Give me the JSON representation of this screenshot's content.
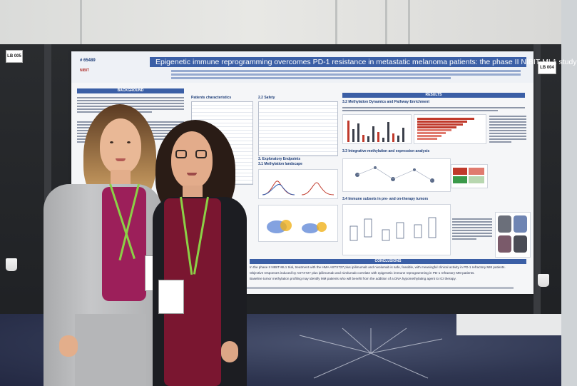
{
  "scene": {
    "board_tags": {
      "left": "LB 005",
      "right": "LB 004"
    },
    "colors": {
      "poster_blue": "#3b5fa6",
      "board": "#232528",
      "lanyard": "#8bd046",
      "blazer": "#b8b9bb",
      "cardigan": "#1c1d22",
      "top_magenta": "#9c1f5a"
    }
  },
  "poster": {
    "id": "# 65489",
    "title": "Epigenetic immune reprogramming overcomes PD-1 resistance in metastatic melanoma patients: the phase II NIBIT-ML1 study",
    "logo": "NIBIT",
    "sections": {
      "background": "BACKGROUND",
      "patients": "Patients characteristics",
      "safety": "2.2 Safety",
      "results": "RESULTS",
      "methylation_dynamics": "3.2 Methylation Dynamics and Pathway Enrichment",
      "integrative": "3.3 Integrative methylation and expression analysis",
      "exploratory": "3. Exploratory Endpoints",
      "landscape": "3.1 Methylation landscape",
      "immune": "3.4 Immune subsets in pre- and on-therapy tumors",
      "conclusions": "CONCLUSIONS"
    },
    "conclusions": [
      "In the phase II NIBIT-ML1 trial, treatment with the HMA ASTX727 plus ipilimumab and nivolumab is safe, feasible, with meaningful clinical activity in PD-1 refractory MM patients.",
      "Objective responses induced by ASTX727 plus ipilimumab and nivolumab correlate with epigenetic immune reprogramming in PD-1 refractory MM patients.",
      "Baseline tumor methylation profiling may identify MM patients who will benefit from the addition of a DNA hypomethylating agent to ICI therapy."
    ]
  }
}
